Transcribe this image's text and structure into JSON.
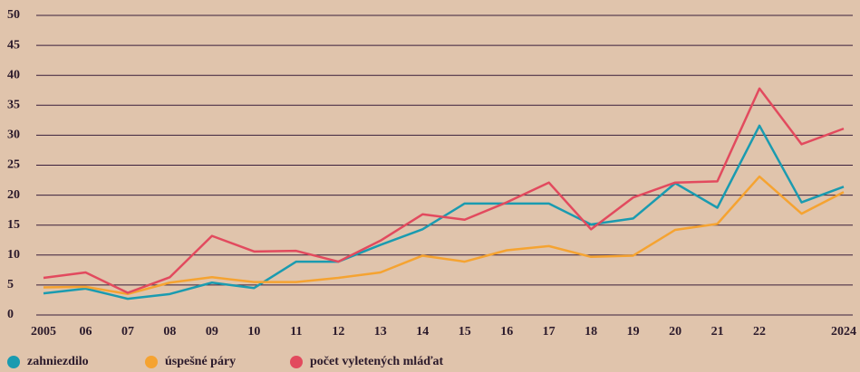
{
  "chart_data": {
    "type": "line",
    "categories": [
      "2005",
      "06",
      "07",
      "08",
      "09",
      "10",
      "11",
      "12",
      "13",
      "14",
      "15",
      "16",
      "17",
      "18",
      "19",
      "20",
      "21",
      "22",
      null,
      "2024"
    ],
    "series": [
      {
        "name": "zahniezdilo",
        "color": "#1a9bb0",
        "values": [
          3.6,
          4.4,
          2.7,
          3.5,
          5.4,
          4.5,
          8.9,
          8.9,
          11.7,
          14.3,
          18.6,
          18.6,
          18.6,
          15.1,
          16.1,
          22.0,
          17.9,
          31.6,
          18.8,
          21.4
        ]
      },
      {
        "name": "úspešné páry",
        "color": "#f5a331",
        "values": [
          4.6,
          4.7,
          3.5,
          5.4,
          6.3,
          5.5,
          5.5,
          6.2,
          7.1,
          9.9,
          8.9,
          10.8,
          11.5,
          9.7,
          9.9,
          14.2,
          15.2,
          23.1,
          16.9,
          20.5
        ]
      },
      {
        "name": "počet vyletených mláďat",
        "color": "#e24a5e",
        "values": [
          6.2,
          7.1,
          3.7,
          6.3,
          13.2,
          10.6,
          10.7,
          8.9,
          12.4,
          16.8,
          15.9,
          18.8,
          22.1,
          14.3,
          19.6,
          22.1,
          22.3,
          37.8,
          28.5,
          31.1
        ]
      }
    ],
    "ylim": [
      0,
      50
    ],
    "yticks": [
      0,
      5,
      10,
      15,
      20,
      25,
      30,
      35,
      40,
      45,
      50
    ],
    "grid": true
  }
}
